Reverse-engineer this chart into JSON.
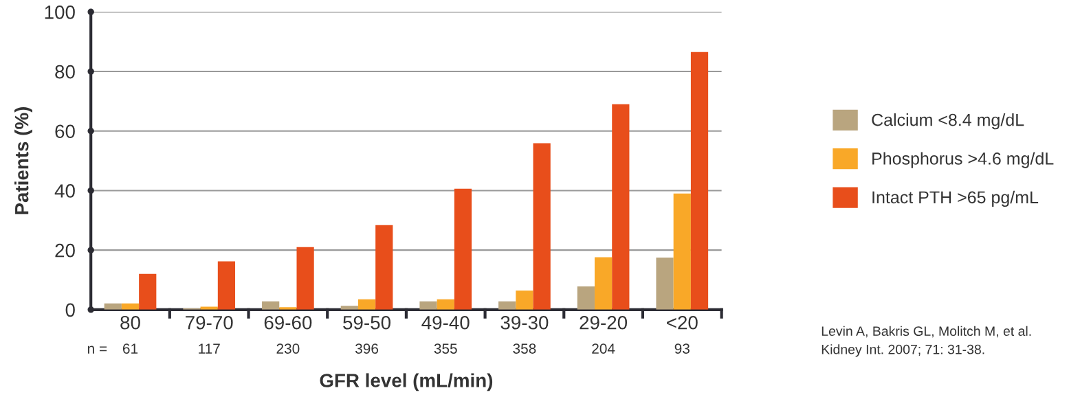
{
  "chart_data": {
    "type": "bar",
    "xlabel": "GFR level (mL/min)",
    "ylabel": "Patients (%)",
    "categories": [
      "80",
      "79-70",
      "69-60",
      "59-50",
      "49-40",
      "39-30",
      "29-20",
      "<20"
    ],
    "series": [
      {
        "name": "Calcium <8.4 mg/dL",
        "color": "#b9a57f",
        "values": [
          2.1,
          0.4,
          2.8,
          1.3,
          2.8,
          2.8,
          7.8,
          17.5
        ]
      },
      {
        "name": "Phosphorus >4.6 mg/dL",
        "color": "#f9a828",
        "values": [
          2.1,
          1.0,
          0.8,
          3.5,
          3.5,
          6.4,
          17.6,
          39
        ]
      },
      {
        "name": "Intact PTH >65 pg/mL",
        "color": "#e84e1b",
        "values": [
          12,
          16.2,
          21,
          28.4,
          40.6,
          55.9,
          69,
          86.5
        ]
      }
    ],
    "ylim": [
      0,
      100
    ],
    "yticks": [
      0,
      20,
      40,
      60,
      80,
      100
    ],
    "grid": "y",
    "legend": "right",
    "annotations": [
      "n =",
      "61",
      "117",
      "230",
      "396",
      "355",
      "358",
      "204",
      "93",
      "Levin A, Bakris GL, Molitch M, et al.\nKidney Int. 2007; 71: 31-38."
    ]
  }
}
